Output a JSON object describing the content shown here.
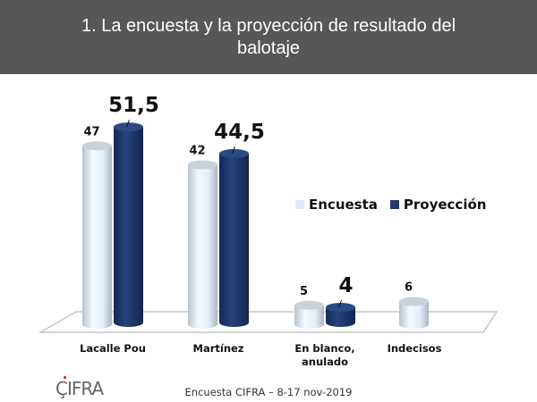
{
  "header": {
    "title": "1. La encuesta y la proyección de resultado del balotaje"
  },
  "chart_data": {
    "type": "bar",
    "title": "1. La encuesta y la proyección de resultado del balotaje",
    "categories": [
      "Lacalle Pou",
      "Martínez",
      "En blanco, anulado",
      "Indecisos"
    ],
    "series": [
      {
        "name": "Encuesta",
        "values": [
          47,
          42,
          5,
          6
        ],
        "labels": [
          "47",
          "42",
          "5",
          "6"
        ],
        "color": "#dfeaf5"
      },
      {
        "name": "Proyección",
        "values": [
          51.5,
          44.5,
          4,
          null
        ],
        "labels": [
          "51,5",
          "44,5",
          "4",
          ""
        ],
        "color": "#1f3a6b"
      }
    ],
    "legend_position": "right",
    "grid": false
  },
  "footer": {
    "source": "Encuesta CIFRA – 8-17 nov-2019",
    "logo": "CIFRA"
  }
}
